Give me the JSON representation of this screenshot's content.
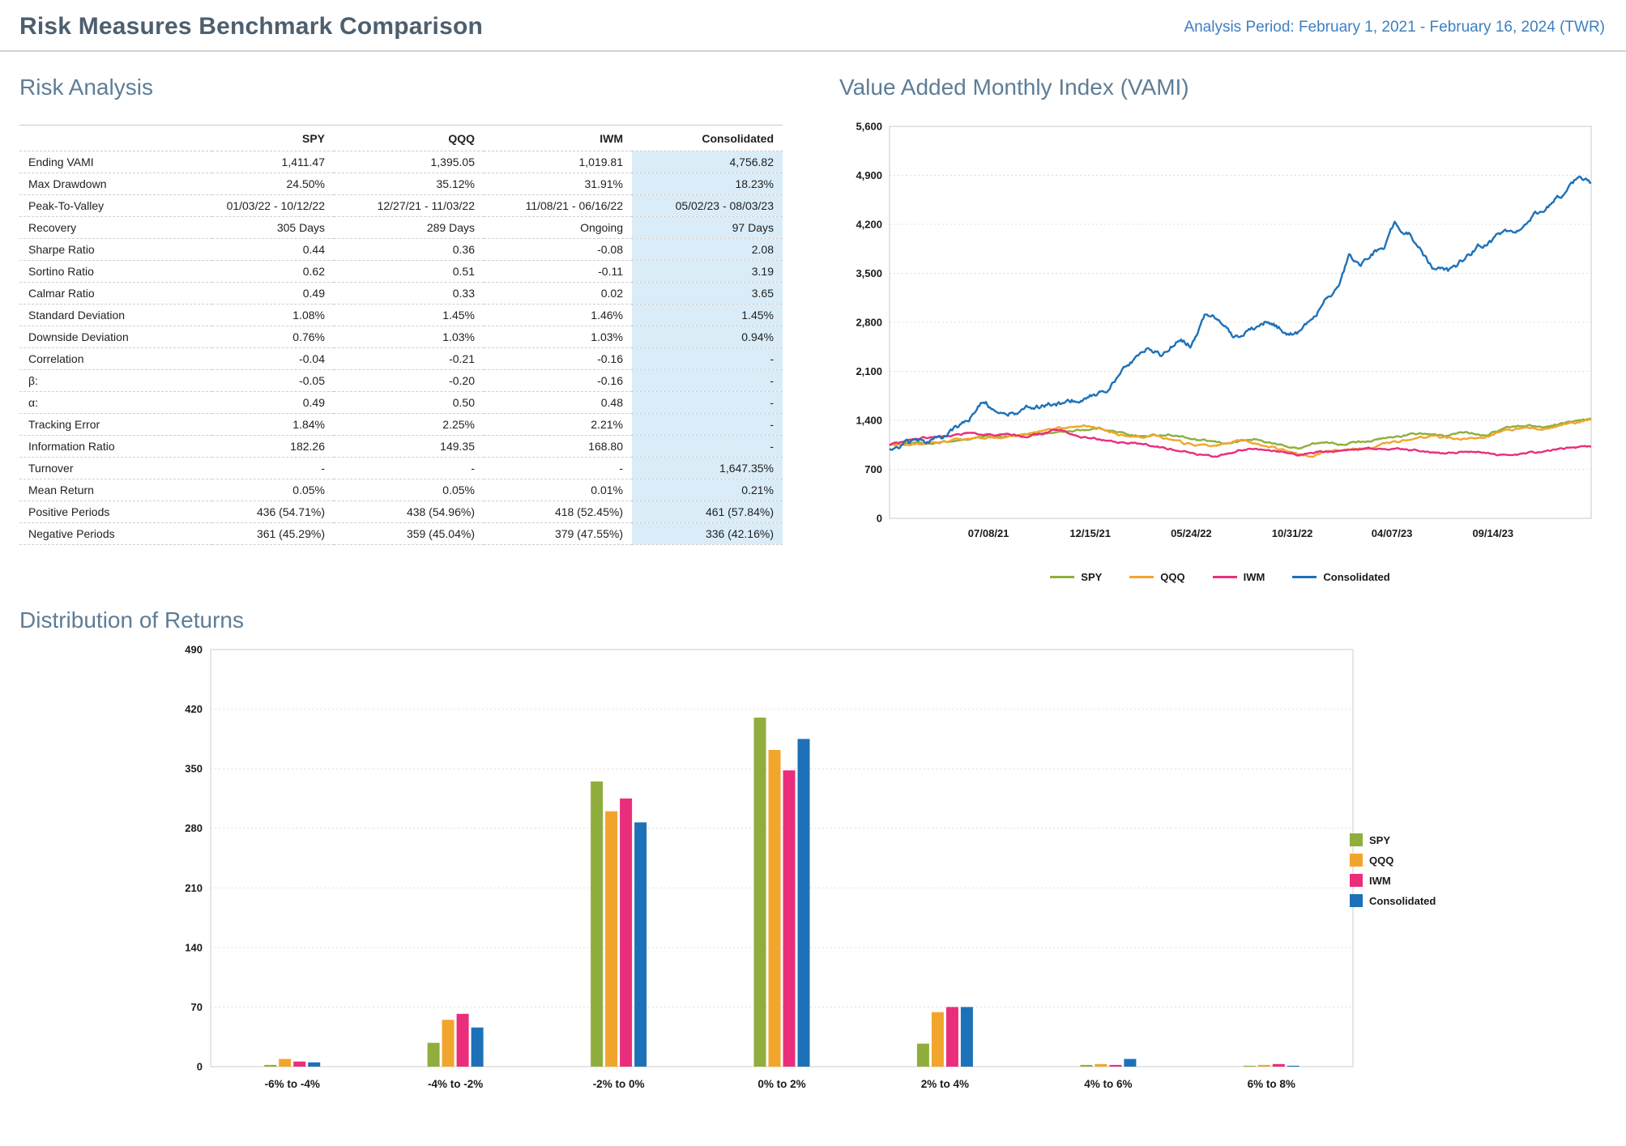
{
  "header": {
    "title": "Risk Measures Benchmark Comparison",
    "analysis_period": "Analysis Period: February 1, 2021 - February 16, 2024 (TWR)"
  },
  "sections": {
    "risk_analysis": "Risk Analysis",
    "vami": "Value Added Monthly Index (VAMI)",
    "distribution": "Distribution of Returns"
  },
  "colors": {
    "SPY": "#8fae3d",
    "QQQ": "#f2a52c",
    "IWM": "#ea2e7b",
    "Consolidated": "#1d71b8",
    "negative_label": "#e2571f",
    "positive_label": "#1e9e3e"
  },
  "chart_data": [
    {
      "type": "table",
      "title": "Risk Analysis",
      "columns": [
        "",
        "SPY",
        "QQQ",
        "IWM",
        "Consolidated"
      ],
      "rows": [
        {
          "label": "Ending VAMI",
          "values": [
            "1,411.47",
            "1,395.05",
            "1,019.81",
            "4,756.82"
          ]
        },
        {
          "label": "Max Drawdown",
          "values": [
            "24.50%",
            "35.12%",
            "31.91%",
            "18.23%"
          ]
        },
        {
          "label": "Peak-To-Valley",
          "values": [
            "01/03/22 - 10/12/22",
            "12/27/21 - 11/03/22",
            "11/08/21 - 06/16/22",
            "05/02/23 - 08/03/23"
          ]
        },
        {
          "label": "Recovery",
          "values": [
            "305 Days",
            "289 Days",
            "Ongoing",
            "97 Days"
          ]
        },
        {
          "label": "Sharpe Ratio",
          "values": [
            "0.44",
            "0.36",
            "-0.08",
            "2.08"
          ]
        },
        {
          "label": "Sortino Ratio",
          "values": [
            "0.62",
            "0.51",
            "-0.11",
            "3.19"
          ]
        },
        {
          "label": "Calmar Ratio",
          "values": [
            "0.49",
            "0.33",
            "0.02",
            "3.65"
          ]
        },
        {
          "label": "Standard Deviation",
          "values": [
            "1.08%",
            "1.45%",
            "1.46%",
            "1.45%"
          ]
        },
        {
          "label": "Downside Deviation",
          "values": [
            "0.76%",
            "1.03%",
            "1.03%",
            "0.94%"
          ]
        },
        {
          "label": "Correlation",
          "values": [
            "-0.04",
            "-0.21",
            "-0.16",
            "-"
          ]
        },
        {
          "label": "β:",
          "values": [
            "-0.05",
            "-0.20",
            "-0.16",
            "-"
          ]
        },
        {
          "label": "α:",
          "values": [
            "0.49",
            "0.50",
            "0.48",
            "-"
          ]
        },
        {
          "label": "Tracking Error",
          "values": [
            "1.84%",
            "2.25%",
            "2.21%",
            "-"
          ]
        },
        {
          "label": "Information Ratio",
          "values": [
            "182.26",
            "149.35",
            "168.80",
            "-"
          ]
        },
        {
          "label": "Turnover",
          "values": [
            "-",
            "-",
            "-",
            "1,647.35%"
          ]
        },
        {
          "label": "Mean Return",
          "values": [
            "0.05%",
            "0.05%",
            "0.01%",
            "0.21%"
          ]
        },
        {
          "label": "Positive Periods",
          "values": [
            "436 (54.71%)",
            "438 (54.96%)",
            "418 (52.45%)",
            "461 (57.84%)"
          ]
        },
        {
          "label": "Negative Periods",
          "values": [
            "361 (45.29%)",
            "359 (45.04%)",
            "379 (47.55%)",
            "336 (42.16%)"
          ]
        }
      ]
    },
    {
      "type": "line",
      "title": "Value Added Monthly Index (VAMI)",
      "xlabel": "",
      "ylabel": "",
      "ylim": [
        0,
        5600
      ],
      "grid": "horizontal-dashed",
      "legend_position": "bottom",
      "yticks": [
        {
          "value": 0,
          "label": "0"
        },
        {
          "value": 700,
          "label": "700"
        },
        {
          "value": 1400,
          "label": "1,400"
        },
        {
          "value": 2100,
          "label": "2,100"
        },
        {
          "value": 2800,
          "label": "2,800"
        },
        {
          "value": 3500,
          "label": "3,500"
        },
        {
          "value": 4200,
          "label": "4,200"
        },
        {
          "value": 4900,
          "label": "4,900"
        },
        {
          "value": 5600,
          "label": "5,600"
        }
      ],
      "xticks": [
        {
          "pos": 0.141,
          "label": "07/08/21"
        },
        {
          "pos": 0.286,
          "label": "12/15/21"
        },
        {
          "pos": 0.43,
          "label": "05/24/22"
        },
        {
          "pos": 0.574,
          "label": "10/31/22"
        },
        {
          "pos": 0.716,
          "label": "04/07/23"
        },
        {
          "pos": 0.86,
          "label": "09/14/23"
        }
      ],
      "x_range": [
        "02/01/21",
        "02/16/24"
      ],
      "series": [
        {
          "name": "SPY",
          "ending_value": 1411.47,
          "jitter": 20,
          "anchors": [
            [
              0,
              1050
            ],
            [
              0.03,
              1080
            ],
            [
              0.06,
              1060
            ],
            [
              0.1,
              1120
            ],
            [
              0.14,
              1160
            ],
            [
              0.18,
              1170
            ],
            [
              0.22,
              1210
            ],
            [
              0.26,
              1250
            ],
            [
              0.3,
              1290
            ],
            [
              0.33,
              1220
            ],
            [
              0.36,
              1170
            ],
            [
              0.4,
              1200
            ],
            [
              0.44,
              1110
            ],
            [
              0.48,
              1070
            ],
            [
              0.52,
              1130
            ],
            [
              0.55,
              1060
            ],
            [
              0.58,
              1000
            ],
            [
              0.61,
              1080
            ],
            [
              0.64,
              1060
            ],
            [
              0.67,
              1100
            ],
            [
              0.7,
              1130
            ],
            [
              0.73,
              1180
            ],
            [
              0.76,
              1210
            ],
            [
              0.79,
              1170
            ],
            [
              0.82,
              1230
            ],
            [
              0.85,
              1200
            ],
            [
              0.88,
              1300
            ],
            [
              0.91,
              1330
            ],
            [
              0.93,
              1300
            ],
            [
              0.96,
              1360
            ],
            [
              1,
              1411
            ]
          ]
        },
        {
          "name": "QQQ",
          "ending_value": 1395.05,
          "jitter": 22,
          "anchors": [
            [
              0,
              1040
            ],
            [
              0.04,
              1060
            ],
            [
              0.08,
              1100
            ],
            [
              0.12,
              1150
            ],
            [
              0.16,
              1140
            ],
            [
              0.2,
              1220
            ],
            [
              0.24,
              1280
            ],
            [
              0.28,
              1330
            ],
            [
              0.31,
              1260
            ],
            [
              0.34,
              1150
            ],
            [
              0.38,
              1190
            ],
            [
              0.42,
              1070
            ],
            [
              0.46,
              1030
            ],
            [
              0.5,
              1110
            ],
            [
              0.54,
              1010
            ],
            [
              0.57,
              940
            ],
            [
              0.6,
              880
            ],
            [
              0.63,
              960
            ],
            [
              0.66,
              990
            ],
            [
              0.69,
              1030
            ],
            [
              0.72,
              1090
            ],
            [
              0.75,
              1150
            ],
            [
              0.78,
              1170
            ],
            [
              0.81,
              1130
            ],
            [
              0.84,
              1140
            ],
            [
              0.87,
              1240
            ],
            [
              0.9,
              1290
            ],
            [
              0.93,
              1280
            ],
            [
              0.96,
              1340
            ],
            [
              1,
              1395
            ]
          ]
        },
        {
          "name": "IWM",
          "ending_value": 1019.81,
          "jitter": 20,
          "anchors": [
            [
              0,
              1050
            ],
            [
              0.04,
              1130
            ],
            [
              0.08,
              1180
            ],
            [
              0.12,
              1230
            ],
            [
              0.15,
              1190
            ],
            [
              0.19,
              1170
            ],
            [
              0.22,
              1220
            ],
            [
              0.24,
              1270
            ],
            [
              0.27,
              1160
            ],
            [
              0.31,
              1110
            ],
            [
              0.35,
              1070
            ],
            [
              0.39,
              1010
            ],
            [
              0.43,
              930
            ],
            [
              0.46,
              870
            ],
            [
              0.49,
              950
            ],
            [
              0.52,
              1000
            ],
            [
              0.55,
              960
            ],
            [
              0.58,
              910
            ],
            [
              0.61,
              950
            ],
            [
              0.64,
              970
            ],
            [
              0.67,
              990
            ],
            [
              0.7,
              1010
            ],
            [
              0.73,
              990
            ],
            [
              0.76,
              950
            ],
            [
              0.79,
              930
            ],
            [
              0.82,
              960
            ],
            [
              0.85,
              940
            ],
            [
              0.87,
              905
            ],
            [
              0.9,
              925
            ],
            [
              0.93,
              955
            ],
            [
              0.96,
              1000
            ],
            [
              1,
              1020
            ]
          ]
        },
        {
          "name": "Consolidated",
          "ending_value": 4756.82,
          "jitter": 60,
          "anchors": [
            [
              0,
              1020
            ],
            [
              0.02,
              1080
            ],
            [
              0.05,
              1060
            ],
            [
              0.08,
              1200
            ],
            [
              0.11,
              1380
            ],
            [
              0.135,
              1680
            ],
            [
              0.16,
              1480
            ],
            [
              0.19,
              1560
            ],
            [
              0.22,
              1600
            ],
            [
              0.25,
              1640
            ],
            [
              0.28,
              1730
            ],
            [
              0.31,
              1850
            ],
            [
              0.33,
              2050
            ],
            [
              0.35,
              2280
            ],
            [
              0.37,
              2420
            ],
            [
              0.39,
              2340
            ],
            [
              0.41,
              2560
            ],
            [
              0.43,
              2480
            ],
            [
              0.45,
              2920
            ],
            [
              0.47,
              2840
            ],
            [
              0.49,
              2590
            ],
            [
              0.52,
              2720
            ],
            [
              0.54,
              2840
            ],
            [
              0.56,
              2690
            ],
            [
              0.58,
              2640
            ],
            [
              0.6,
              2760
            ],
            [
              0.62,
              3120
            ],
            [
              0.64,
              3320
            ],
            [
              0.655,
              3740
            ],
            [
              0.67,
              3620
            ],
            [
              0.69,
              3810
            ],
            [
              0.705,
              3900
            ],
            [
              0.72,
              4190
            ],
            [
              0.74,
              4090
            ],
            [
              0.76,
              3790
            ],
            [
              0.78,
              3540
            ],
            [
              0.8,
              3520
            ],
            [
              0.82,
              3700
            ],
            [
              0.84,
              3880
            ],
            [
              0.86,
              3980
            ],
            [
              0.88,
              4080
            ],
            [
              0.9,
              4180
            ],
            [
              0.92,
              4330
            ],
            [
              0.94,
              4490
            ],
            [
              0.96,
              4640
            ],
            [
              0.98,
              4870
            ],
            [
              1,
              4757
            ]
          ]
        }
      ]
    },
    {
      "type": "bar",
      "title": "Distribution of Returns",
      "xlabel": "",
      "ylabel": "",
      "ylim": [
        0,
        490
      ],
      "grid": "horizontal-dashed",
      "legend_position": "right",
      "yticks": [
        0,
        70,
        140,
        210,
        280,
        350,
        420,
        490
      ],
      "categories": [
        {
          "label": "-6% to -4%",
          "tone": "negative"
        },
        {
          "label": "-4% to -2%",
          "tone": "negative"
        },
        {
          "label": "-2% to 0%",
          "tone": "negative"
        },
        {
          "label": "0% to 2%",
          "tone": "positive"
        },
        {
          "label": "2% to 4%",
          "tone": "positive"
        },
        {
          "label": "4% to 6%",
          "tone": "positive"
        },
        {
          "label": "6% to 8%",
          "tone": "positive"
        }
      ],
      "series": [
        {
          "name": "SPY",
          "values": [
            2,
            28,
            335,
            410,
            27,
            2,
            1
          ]
        },
        {
          "name": "QQQ",
          "values": [
            9,
            55,
            300,
            372,
            64,
            3,
            2
          ]
        },
        {
          "name": "IWM",
          "values": [
            6,
            62,
            315,
            348,
            70,
            2,
            3
          ]
        },
        {
          "name": "Consolidated",
          "values": [
            5,
            46,
            287,
            385,
            70,
            9,
            1
          ]
        }
      ]
    }
  ]
}
